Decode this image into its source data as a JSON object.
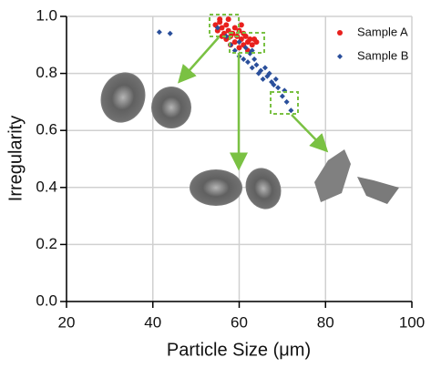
{
  "chart_data": {
    "type": "scatter",
    "x_label": "Particle Size (μm)",
    "y_label": "Irregularity",
    "xlim": [
      20,
      100
    ],
    "xticks": [
      20,
      40,
      60,
      80,
      100
    ],
    "ylim": [
      0,
      1
    ],
    "yticks": [
      {
        "value": 0,
        "label": "0.0"
      },
      {
        "value": 0.2,
        "label": "0.2"
      },
      {
        "value": 0.4,
        "label": "0.4"
      },
      {
        "value": 0.6,
        "label": "0.6"
      },
      {
        "value": 0.8,
        "label": "0.8"
      },
      {
        "value": 1,
        "label": "1.0"
      }
    ],
    "grid": true,
    "legend": "upper right",
    "series": [
      {
        "name": "Sample A",
        "color": "#e8201d",
        "marker": "circle",
        "x": [
          54.5,
          55,
          55.5,
          56,
          56,
          56.5,
          57,
          57,
          57.5,
          58,
          58,
          58.5,
          59,
          59,
          59.5,
          60,
          60,
          60.5,
          61,
          61,
          61.5,
          62,
          62,
          62.5,
          63,
          63.5,
          64,
          55.5,
          57.5,
          60.5
        ],
        "values": [
          0.97,
          0.95,
          0.98,
          0.96,
          0.93,
          0.94,
          0.97,
          0.92,
          0.95,
          0.93,
          0.9,
          0.94,
          0.96,
          0.91,
          0.93,
          0.95,
          0.89,
          0.92,
          0.94,
          0.9,
          0.93,
          0.91,
          0.88,
          0.92,
          0.9,
          0.92,
          0.91,
          0.99,
          0.99,
          0.97
        ]
      },
      {
        "name": "Sample B",
        "color": "#2a4f9b",
        "marker": "diamond",
        "x": [
          41.5,
          44,
          55,
          57,
          58,
          59,
          60,
          61,
          61.5,
          62,
          62.5,
          63,
          63.5,
          64,
          64.5,
          65,
          65.5,
          66,
          66.5,
          67,
          67.5,
          68,
          68.5,
          69,
          70,
          70.5,
          71,
          72,
          60,
          63
        ],
        "values": [
          0.945,
          0.94,
          0.96,
          0.93,
          0.9,
          0.88,
          0.86,
          0.85,
          0.89,
          0.84,
          0.87,
          0.82,
          0.85,
          0.83,
          0.8,
          0.81,
          0.78,
          0.82,
          0.79,
          0.8,
          0.77,
          0.76,
          0.78,
          0.75,
          0.72,
          0.74,
          0.7,
          0.67,
          0.91,
          0.88
        ]
      }
    ]
  }
}
